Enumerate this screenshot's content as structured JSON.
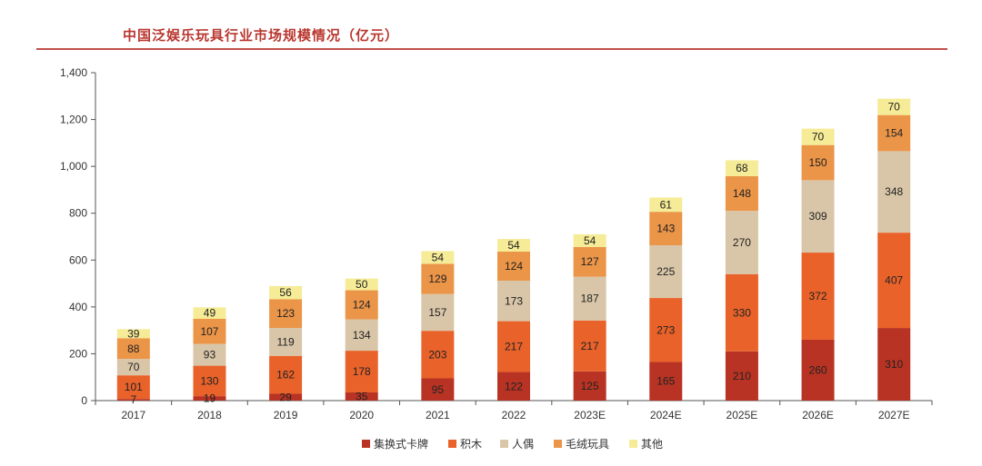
{
  "chart_data": {
    "type": "bar",
    "stacked": true,
    "title": "中国泛娱乐玩具行业市场规模情况（亿元）",
    "categories": [
      "2017",
      "2018",
      "2019",
      "2020",
      "2021",
      "2022",
      "2023E",
      "2024E",
      "2025E",
      "2026E",
      "2027E"
    ],
    "series": [
      {
        "name": "集换式卡牌",
        "color": "#b83323",
        "values": [
          7,
          19,
          29,
          35,
          95,
          122,
          125,
          165,
          210,
          260,
          310
        ]
      },
      {
        "name": "积木",
        "color": "#e9622a",
        "values": [
          101,
          130,
          162,
          178,
          203,
          217,
          217,
          273,
          330,
          372,
          407
        ]
      },
      {
        "name": "人偶",
        "color": "#d9c6a8",
        "values": [
          70,
          93,
          119,
          134,
          157,
          173,
          187,
          225,
          270,
          309,
          348
        ]
      },
      {
        "name": "毛绒玩具",
        "color": "#eb9548",
        "values": [
          88,
          107,
          123,
          124,
          129,
          124,
          127,
          143,
          148,
          150,
          154
        ]
      },
      {
        "name": "其他",
        "color": "#f6eb96",
        "values": [
          39,
          49,
          56,
          50,
          54,
          54,
          54,
          61,
          68,
          70,
          70
        ]
      }
    ],
    "ylim": [
      0,
      1400
    ],
    "yticks": [
      "0",
      "200",
      "400",
      "600",
      "800",
      "1,000",
      "1,200",
      "1,400"
    ],
    "legend_position": "bottom"
  }
}
